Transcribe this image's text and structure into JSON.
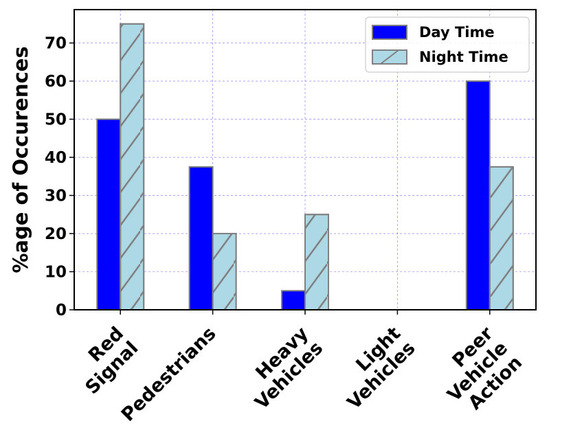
{
  "chart_data": {
    "type": "bar",
    "categories": [
      "Red\nSignal",
      "Pedestrians",
      "Heavy\nVehicles",
      "Light\nVehicles",
      "Peer\nVehicle\nAction"
    ],
    "series": [
      {
        "name": "Day Time",
        "values": [
          50,
          37.5,
          5,
          0,
          60
        ],
        "color": "#0000ff",
        "hatch": "none"
      },
      {
        "name": "Night Time",
        "values": [
          75,
          20,
          25,
          0,
          37.5
        ],
        "color": "#add8e6",
        "hatch": "forward-slash"
      }
    ],
    "title": "",
    "xlabel": "",
    "ylabel": "%age of Occurences",
    "ylim": [
      0,
      78.75
    ],
    "yticks": [
      0,
      10,
      20,
      30,
      40,
      50,
      60,
      70
    ],
    "grid": true,
    "grid_color": "#0000ff",
    "bar_edge_color": "#808080",
    "legend_position": "upper right",
    "x_tick_rotation_deg": 45
  }
}
